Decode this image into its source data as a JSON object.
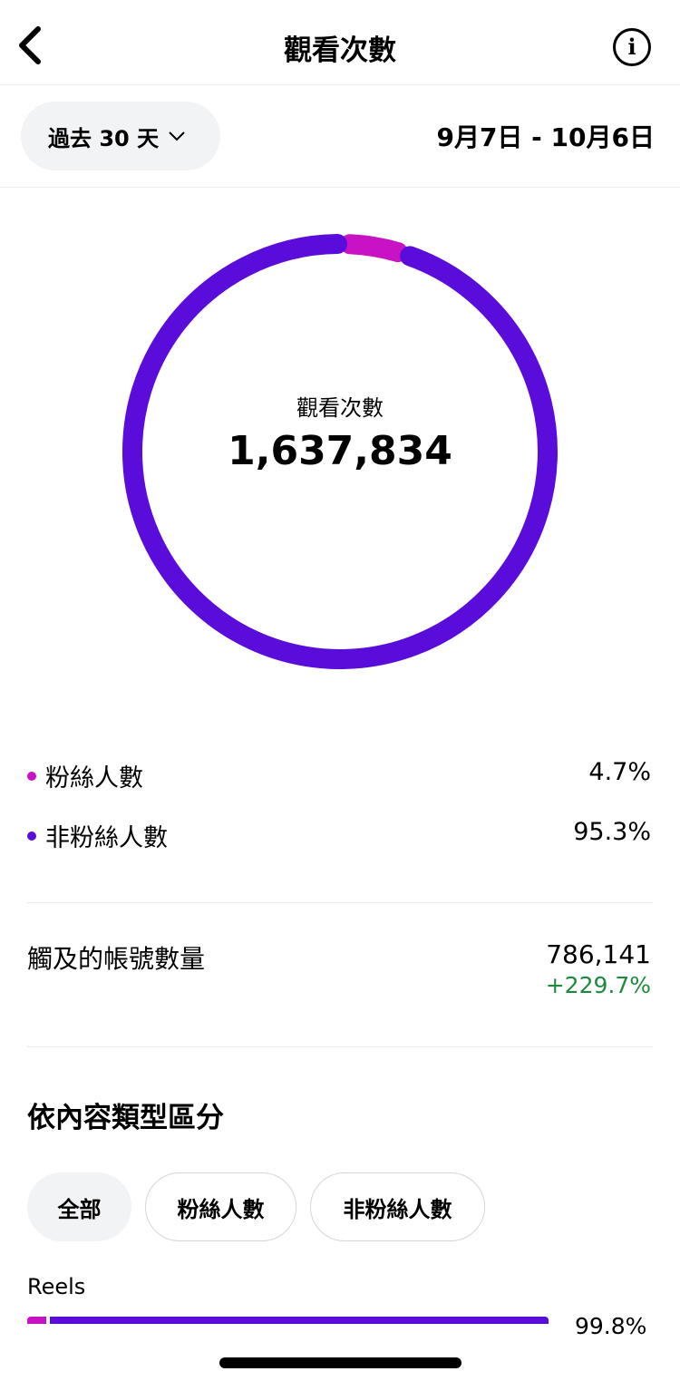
{
  "header": {
    "title": "觀看次數",
    "back_icon": "chevron-left-icon",
    "info_icon": "info-icon"
  },
  "filter": {
    "range_label": "過去 30 天",
    "dropdown_icon": "chevron-down-icon",
    "date_range": "9月7日 - 10月6日"
  },
  "donut": {
    "label": "觀看次數",
    "total": "1,637,834",
    "segments": [
      {
        "name": "粉絲人數",
        "percent": 4.7,
        "color": "#C713C4"
      },
      {
        "name": "非粉絲人數",
        "percent": 95.3,
        "color": "#5A0CDB"
      }
    ]
  },
  "legend": [
    {
      "label": "粉絲人數",
      "value": "4.7%"
    },
    {
      "label": "非粉絲人數",
      "value": "95.3%"
    }
  ],
  "reach": {
    "label": "觸及的帳號數量",
    "value": "786,141",
    "change": "+229.7%",
    "change_color": "#1E8A3E"
  },
  "content_type": {
    "title": "依內容類型區分",
    "chips": [
      "全部",
      "粉絲人數",
      "非粉絲人數"
    ],
    "selected": 0,
    "rows": [
      {
        "label": "Reels",
        "value": "99.8%",
        "follower_fraction": 0.04
      }
    ]
  }
}
